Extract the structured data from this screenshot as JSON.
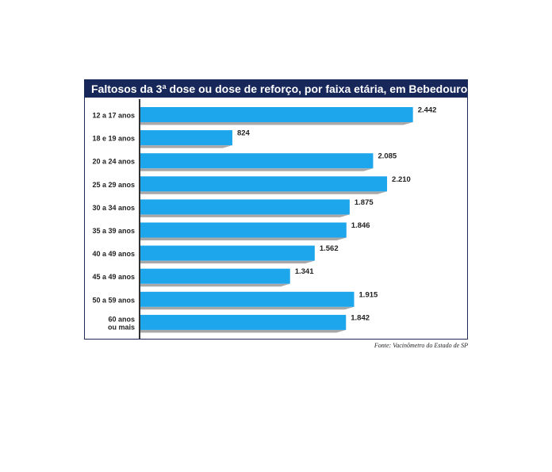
{
  "chart_data": {
    "type": "bar",
    "orientation": "horizontal",
    "title": "Faltosos da 3ª dose ou dose de reforço, por faixa etária, em Bebedouro",
    "categories": [
      "12 a 17 anos",
      "18 e 19 anos",
      "20 a 24 anos",
      "25 a 29 anos",
      "30 a 34 anos",
      "35 a 39 anos",
      "40 a 49 anos",
      "45 a 49 anos",
      "50 a 59 anos",
      "60 anos ou mais"
    ],
    "category_lines": [
      [
        "12 a 17 anos"
      ],
      [
        "18 e 19 anos"
      ],
      [
        "20 a 24 anos"
      ],
      [
        "25 a 29 anos"
      ],
      [
        "30 a 34 anos"
      ],
      [
        "35 a 39 anos"
      ],
      [
        "40 a 49 anos"
      ],
      [
        "45 a 49 anos"
      ],
      [
        "50 a 59 anos"
      ],
      [
        "60 anos",
        "ou mais"
      ]
    ],
    "values": [
      2442,
      824,
      2085,
      2210,
      1875,
      1846,
      1562,
      1341,
      1915,
      1842
    ],
    "value_labels": [
      "2.442",
      "824",
      "2.085",
      "2.210",
      "1.875",
      "1.846",
      "1.562",
      "1.341",
      "1.915",
      "1.842"
    ],
    "xlim": [
      0,
      2700
    ],
    "bar_color": "#1ea6ec",
    "shadow_color": "#a8a8a8",
    "title_bg": "#17275a",
    "grid": false,
    "legend": "none"
  },
  "source": "Fonte: Vacinômetro do Estado de SP"
}
